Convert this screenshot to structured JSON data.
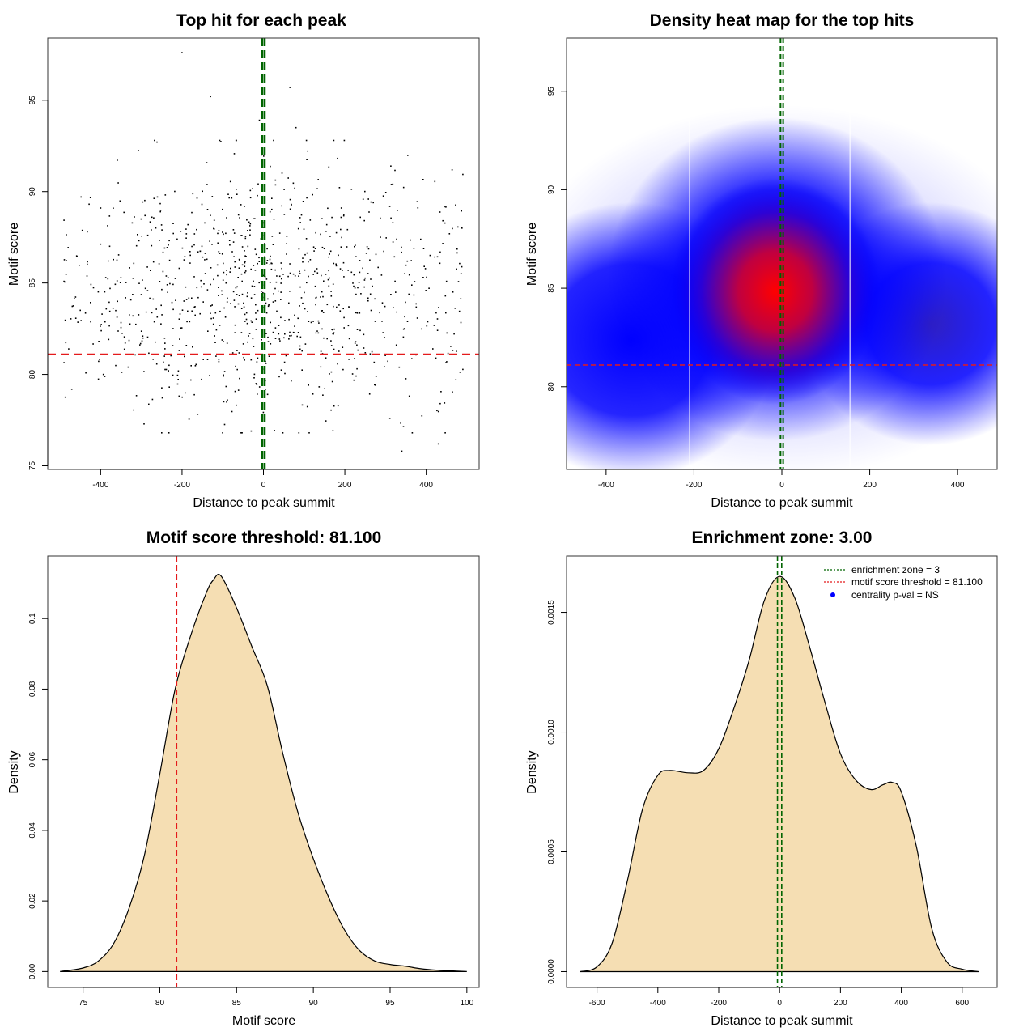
{
  "colors": {
    "threshold_line": "#e41a1c",
    "zone_line": "#006400",
    "density_fill": "#f5deb3",
    "points": "#000000",
    "heat_low": "#ffffff",
    "heat_mid": "#0000ff",
    "heat_high": "#ff0000",
    "legend_point": "#0000ff"
  },
  "chart_data": [
    {
      "id": "scatter",
      "type": "scatter",
      "title": "Top hit for each peak",
      "xlabel": "Distance to peak summit",
      "ylabel": "Motif score",
      "xlim": [
        -530,
        530
      ],
      "ylim": [
        74.8,
        98.4
      ],
      "xticks": [
        -400,
        -200,
        0,
        200,
        400
      ],
      "yticks": [
        75,
        80,
        85,
        90,
        95
      ],
      "threshold": 81.1,
      "zone": [
        -3,
        3
      ],
      "n_points": 1000,
      "notable_points": [
        {
          "x": -200,
          "y": 97.6
        },
        {
          "x": -130,
          "y": 95.2
        },
        {
          "x": 65,
          "y": 95.7
        },
        {
          "x": -10,
          "y": 93.9
        },
        {
          "x": 80,
          "y": 93.5
        },
        {
          "x": 340,
          "y": 75.8
        },
        {
          "x": 430,
          "y": 76.2
        },
        {
          "x": -250,
          "y": 76.8
        },
        {
          "x": -30,
          "y": 76.9
        }
      ]
    },
    {
      "id": "heatmap",
      "type": "heatmap",
      "title": "Density heat map for the top hits",
      "xlabel": "Distance to peak summit",
      "ylabel": "Motif score",
      "xlim": [
        -490,
        490
      ],
      "ylim": [
        75.8,
        97.7
      ],
      "xticks": [
        -400,
        -200,
        0,
        200,
        400
      ],
      "yticks": [
        80,
        85,
        90,
        95
      ],
      "threshold": 81.1,
      "zone": [
        -3,
        3
      ],
      "bands": [
        -210,
        155
      ],
      "density_peak": {
        "x": -10,
        "y": 84.6
      }
    },
    {
      "id": "score-density",
      "type": "area",
      "title": "Motif score threshold: 81.100",
      "xlabel": "Motif score",
      "ylabel": "Density",
      "xlim": [
        72.7,
        100.8
      ],
      "ylim": [
        -0.0045,
        0.1177
      ],
      "xticks": [
        75,
        80,
        85,
        90,
        95,
        100
      ],
      "yticks": [
        0.0,
        0.02,
        0.04,
        0.06,
        0.08,
        0.1
      ],
      "threshold": 81.1,
      "x": [
        73.5,
        75,
        76,
        77,
        78,
        79,
        80,
        81,
        82,
        83,
        83.5,
        84,
        85,
        86,
        87,
        88,
        89,
        90,
        91,
        92,
        93,
        94,
        95,
        96,
        97,
        98,
        99,
        100
      ],
      "y": [
        0.0,
        0.001,
        0.003,
        0.008,
        0.018,
        0.033,
        0.056,
        0.08,
        0.095,
        0.107,
        0.111,
        0.112,
        0.103,
        0.092,
        0.081,
        0.062,
        0.045,
        0.032,
        0.021,
        0.012,
        0.006,
        0.003,
        0.002,
        0.0015,
        0.0008,
        0.0004,
        0.0002,
        0.0
      ]
    },
    {
      "id": "distance-density",
      "type": "area",
      "title": "Enrichment zone: 3.00",
      "xlabel": "Distance to peak summit",
      "ylabel": "Density",
      "xlim": [
        -700,
        715
      ],
      "ylim": [
        -6.6e-05,
        0.001735
      ],
      "xticks": [
        -600,
        -400,
        -200,
        0,
        200,
        400,
        600
      ],
      "yticks": [
        0.0,
        0.0005,
        0.001,
        0.0015
      ],
      "yticklabels": [
        "0.0000",
        "0.0005",
        "0.0010",
        "0.0015"
      ],
      "zone": [
        -3,
        3
      ],
      "x": [
        -655,
        -600,
        -550,
        -500,
        -450,
        -400,
        -360,
        -300,
        -250,
        -200,
        -150,
        -100,
        -50,
        0,
        50,
        100,
        150,
        200,
        250,
        300,
        340,
        370,
        400,
        450,
        500,
        550,
        600,
        655
      ],
      "y": [
        0.0,
        2e-05,
        0.00012,
        0.00038,
        0.00068,
        0.00082,
        0.00084,
        0.00083,
        0.00084,
        0.00093,
        0.0011,
        0.0013,
        0.00155,
        0.00165,
        0.00156,
        0.00135,
        0.00112,
        0.00091,
        0.0008,
        0.00076,
        0.00078,
        0.00079,
        0.00075,
        0.00052,
        0.00018,
        4e-05,
        1e-05,
        0.0
      ],
      "legend": [
        {
          "label": "enrichment zone = 3",
          "marker": "dotted-line",
          "color": "#006400"
        },
        {
          "label": "motif score threshold = 81.100",
          "marker": "dotted-line",
          "color": "#e41a1c"
        },
        {
          "label": "centrality p-val = NS",
          "marker": "point",
          "color": "#0000ff"
        }
      ],
      "legend_position": "top-right"
    }
  ]
}
